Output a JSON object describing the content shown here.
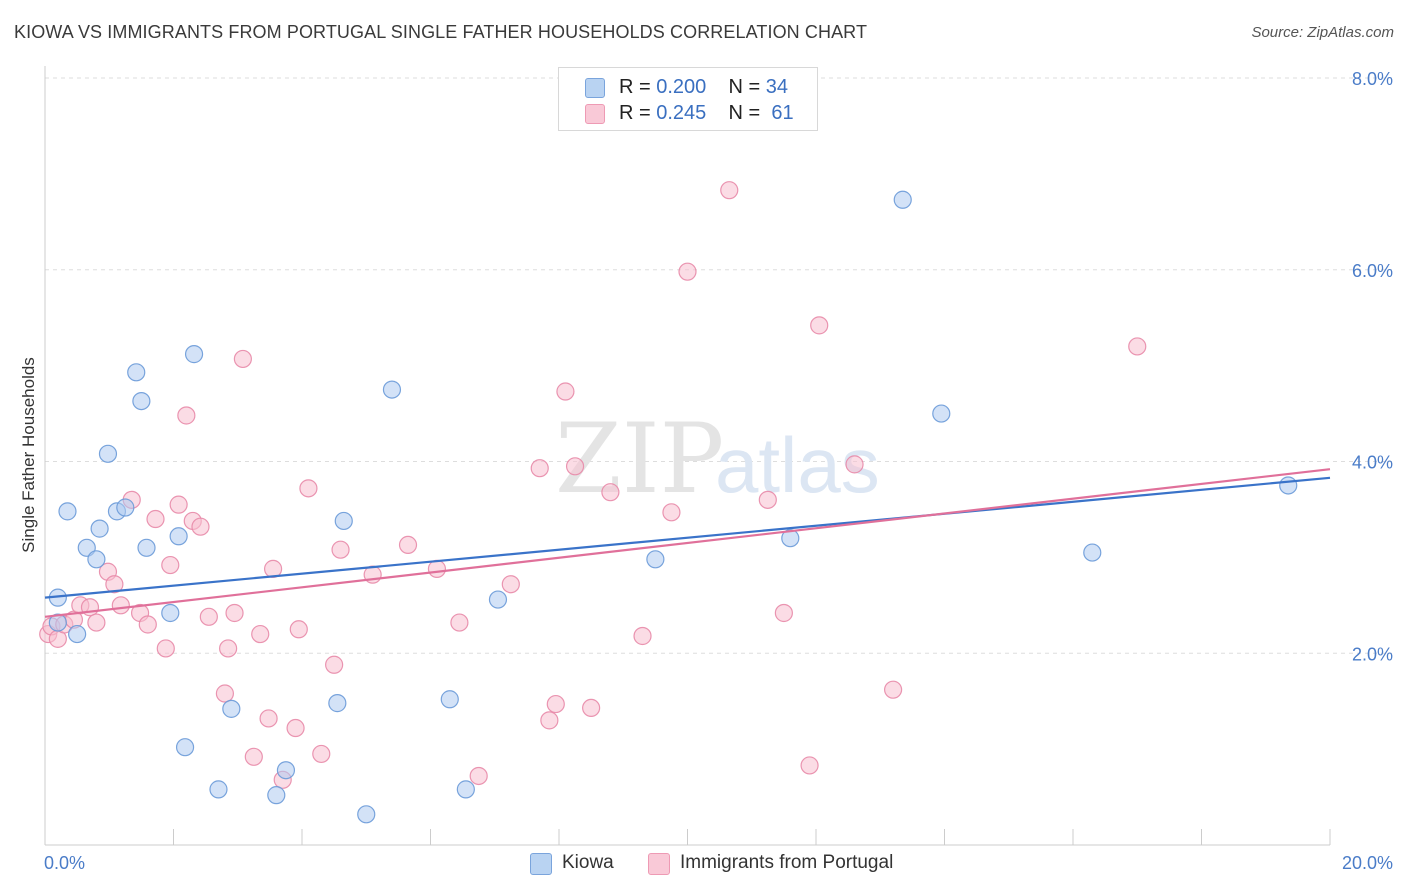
{
  "title": "KIOWA VS IMMIGRANTS FROM PORTUGAL SINGLE FATHER HOUSEHOLDS CORRELATION CHART",
  "source": "Source: ZipAtlas.com",
  "watermark": {
    "zip": "ZIP",
    "atlas": "atlas"
  },
  "legend_top": {
    "rows": [
      {
        "r_label": "R =",
        "r_value": "0.200",
        "n_label": "N =",
        "n_value": "34"
      },
      {
        "r_label": "R =",
        "r_value": "0.245",
        "n_label": "N =",
        "n_value": "61"
      }
    ]
  },
  "legend_bottom": {
    "series1": "Kiowa",
    "series2": "Immigrants from Portugal"
  },
  "chart_data": {
    "type": "scatter",
    "title": "KIOWA VS IMMIGRANTS FROM PORTUGAL SINGLE FATHER HOUSEHOLDS CORRELATION CHART",
    "xlabel": "",
    "ylabel": "Single Father Households",
    "xlim": [
      0,
      20
    ],
    "ylim": [
      0,
      8
    ],
    "x_tick_labels": [
      "0.0%",
      "20.0%"
    ],
    "y_ticks": [
      2,
      4,
      6,
      8
    ],
    "y_tick_labels": [
      "2.0%",
      "4.0%",
      "6.0%",
      "8.0%"
    ],
    "grid": "horizontal dashed",
    "legend_placement": "top-center and bottom",
    "colors": {
      "kiowa_fill": "#aecbf0",
      "kiowa_stroke": "#6a9ad8",
      "kiowa_line": "#3a73c9",
      "portugal_fill": "#f7bfd0",
      "portugal_stroke": "#e88aa8",
      "portugal_line": "#e0709a",
      "axis_text": "#4a7cc8",
      "grid": "#dddddd"
    },
    "series": [
      {
        "name": "Kiowa",
        "trend": {
          "x": [
            0,
            20
          ],
          "y": [
            2.58,
            3.83
          ]
        },
        "points": [
          [
            0.2,
            2.58
          ],
          [
            0.2,
            2.32
          ],
          [
            0.35,
            3.48
          ],
          [
            0.5,
            2.2
          ],
          [
            0.65,
            3.1
          ],
          [
            0.8,
            2.98
          ],
          [
            0.85,
            3.3
          ],
          [
            0.98,
            4.08
          ],
          [
            1.12,
            3.48
          ],
          [
            1.25,
            3.52
          ],
          [
            1.42,
            4.93
          ],
          [
            1.5,
            4.63
          ],
          [
            1.58,
            3.1
          ],
          [
            1.95,
            2.42
          ],
          [
            2.08,
            3.22
          ],
          [
            2.18,
            1.02
          ],
          [
            2.32,
            5.12
          ],
          [
            2.7,
            0.58
          ],
          [
            2.9,
            1.42
          ],
          [
            3.6,
            0.52
          ],
          [
            3.75,
            0.78
          ],
          [
            4.55,
            1.48
          ],
          [
            4.65,
            3.38
          ],
          [
            5.0,
            0.32
          ],
          [
            5.4,
            4.75
          ],
          [
            6.3,
            1.52
          ],
          [
            6.55,
            0.58
          ],
          [
            7.05,
            2.56
          ],
          [
            9.5,
            2.98
          ],
          [
            11.6,
            3.2
          ],
          [
            13.35,
            6.73
          ],
          [
            13.95,
            4.5
          ],
          [
            16.3,
            3.05
          ],
          [
            19.35,
            3.75
          ]
        ]
      },
      {
        "name": "Immigrants from Portugal",
        "trend": {
          "x": [
            0,
            20
          ],
          "y": [
            2.38,
            3.92
          ]
        },
        "points": [
          [
            0.05,
            2.2
          ],
          [
            0.1,
            2.28
          ],
          [
            0.2,
            2.15
          ],
          [
            0.3,
            2.3
          ],
          [
            0.45,
            2.35
          ],
          [
            0.55,
            2.5
          ],
          [
            0.7,
            2.48
          ],
          [
            0.8,
            2.32
          ],
          [
            0.98,
            2.85
          ],
          [
            1.08,
            2.72
          ],
          [
            1.18,
            2.5
          ],
          [
            1.35,
            3.6
          ],
          [
            1.48,
            2.42
          ],
          [
            1.6,
            2.3
          ],
          [
            1.72,
            3.4
          ],
          [
            1.88,
            2.05
          ],
          [
            1.95,
            2.92
          ],
          [
            2.08,
            3.55
          ],
          [
            2.2,
            4.48
          ],
          [
            2.3,
            3.38
          ],
          [
            2.42,
            3.32
          ],
          [
            2.55,
            2.38
          ],
          [
            2.8,
            1.58
          ],
          [
            2.85,
            2.05
          ],
          [
            2.95,
            2.42
          ],
          [
            3.08,
            5.07
          ],
          [
            3.25,
            0.92
          ],
          [
            3.35,
            2.2
          ],
          [
            3.48,
            1.32
          ],
          [
            3.55,
            2.88
          ],
          [
            3.7,
            0.68
          ],
          [
            3.9,
            1.22
          ],
          [
            3.95,
            2.25
          ],
          [
            4.1,
            3.72
          ],
          [
            4.3,
            0.95
          ],
          [
            4.5,
            1.88
          ],
          [
            4.6,
            3.08
          ],
          [
            5.1,
            2.82
          ],
          [
            5.65,
            3.13
          ],
          [
            6.1,
            2.88
          ],
          [
            6.45,
            2.32
          ],
          [
            6.75,
            0.72
          ],
          [
            7.25,
            2.72
          ],
          [
            7.7,
            3.93
          ],
          [
            7.85,
            1.3
          ],
          [
            7.95,
            1.47
          ],
          [
            8.1,
            4.73
          ],
          [
            8.25,
            3.95
          ],
          [
            8.5,
            1.43
          ],
          [
            8.8,
            3.68
          ],
          [
            9.3,
            2.18
          ],
          [
            9.75,
            3.47
          ],
          [
            10.0,
            5.98
          ],
          [
            10.65,
            6.83
          ],
          [
            11.25,
            3.6
          ],
          [
            11.5,
            2.42
          ],
          [
            11.9,
            0.83
          ],
          [
            12.05,
            5.42
          ],
          [
            12.6,
            3.97
          ],
          [
            13.2,
            1.62
          ],
          [
            17.0,
            5.2
          ]
        ]
      }
    ]
  }
}
